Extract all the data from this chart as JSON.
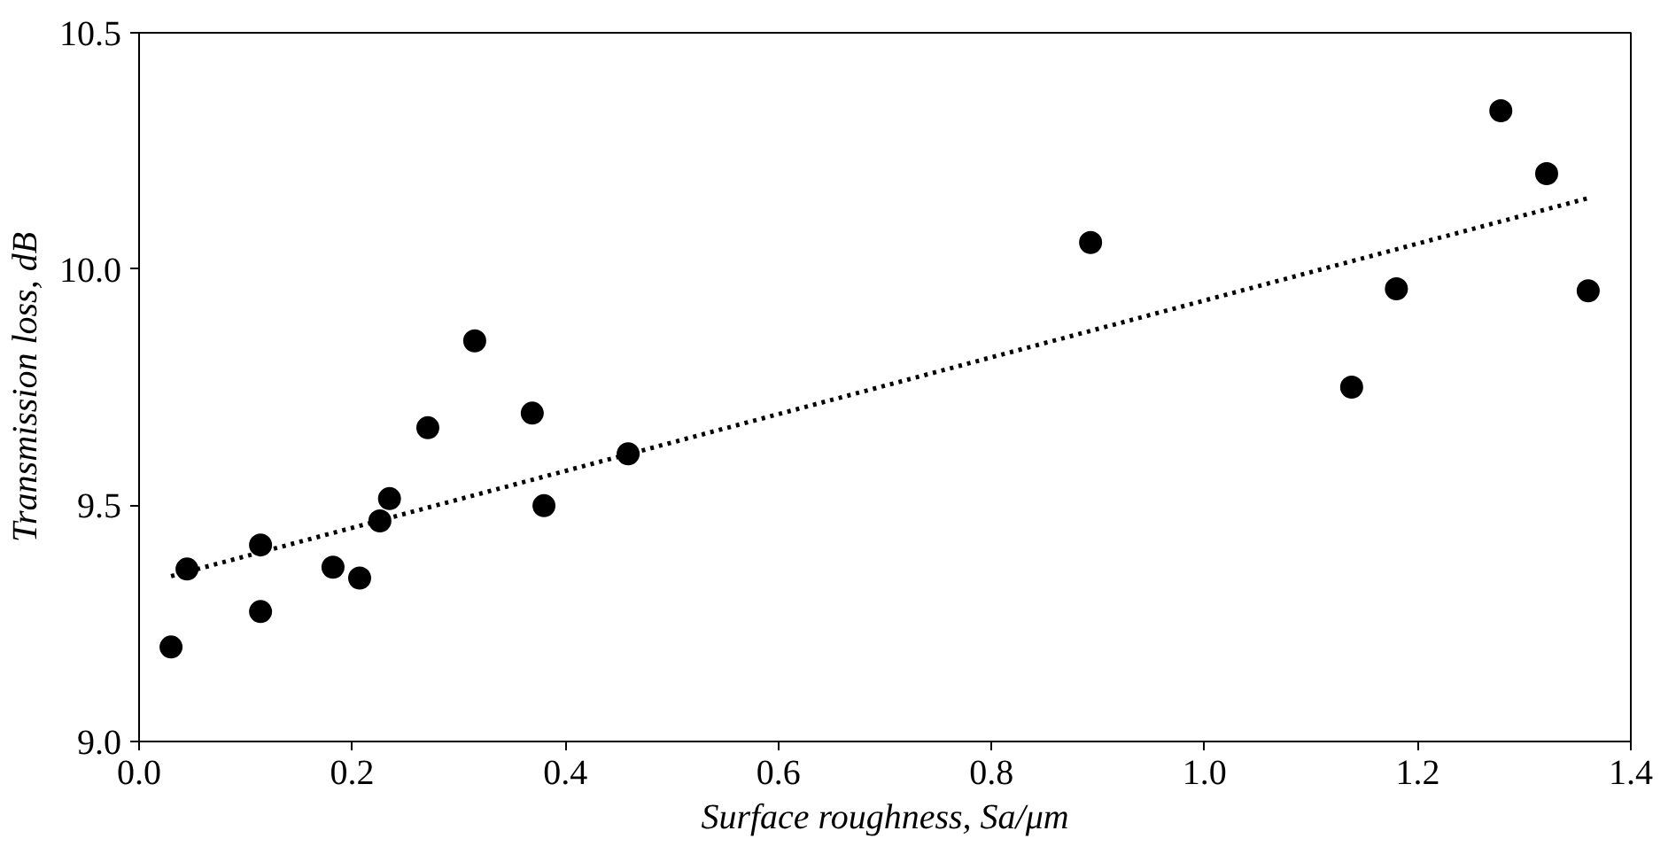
{
  "chart_data": {
    "type": "scatter",
    "xlabel": "Surface roughness, Sa/μm",
    "ylabel": "Transmission loss, dB",
    "xlim": [
      0,
      1.4
    ],
    "ylim": [
      9,
      10.5
    ],
    "xticks": [
      {
        "value": 0,
        "label": "0.0"
      },
      {
        "value": 0.2,
        "label": "0.2"
      },
      {
        "value": 0.4,
        "label": "0.4"
      },
      {
        "value": 0.6,
        "label": "0.6"
      },
      {
        "value": 0.8,
        "label": "0.8"
      },
      {
        "value": 1,
        "label": "1.0"
      },
      {
        "value": 1.2,
        "label": "1.2"
      },
      {
        "value": 1.4,
        "label": "1.4"
      }
    ],
    "yticks": [
      {
        "value": 9,
        "label": "9.0"
      },
      {
        "value": 9.5,
        "label": "9.5"
      },
      {
        "value": 10,
        "label": "10.0"
      },
      {
        "value": 10.5,
        "label": "10.5"
      }
    ],
    "grid": false,
    "series": [
      {
        "color": "#000000",
        "marker": "circle",
        "x": [
          0.03,
          0.045,
          0.114,
          0.114,
          0.182,
          0.207,
          0.226,
          0.235,
          0.271,
          0.315,
          0.369,
          0.38,
          0.459,
          0.893,
          1.138,
          1.18,
          1.278,
          1.321,
          1.36
        ],
        "values": [
          9.2,
          9.365,
          9.416,
          9.275,
          9.369,
          9.346,
          9.467,
          9.514,
          9.664,
          9.848,
          9.695,
          9.499,
          9.609,
          10.056,
          9.75,
          9.958,
          10.335,
          10.202,
          9.954
        ]
      },
      {
        "type": "line",
        "color": "#000000",
        "line_style": "dotted",
        "x": [
          0.03,
          1.36
        ],
        "values": [
          9.35,
          10.15
        ]
      }
    ]
  }
}
